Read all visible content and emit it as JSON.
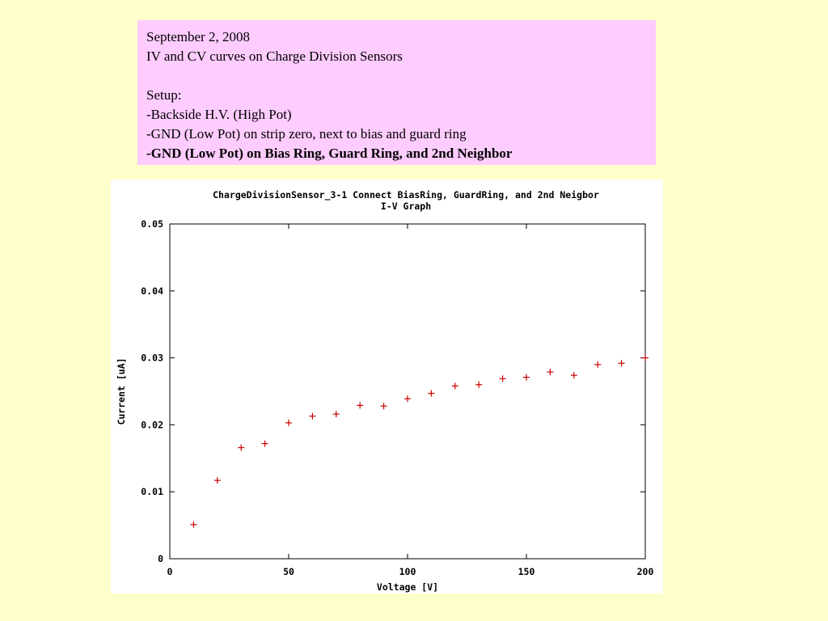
{
  "slide": {
    "date": "September 2, 2008",
    "subject": "IV and CV curves on Charge Division Sensors",
    "setup_heading": "Setup:",
    "setup_items": [
      "-Backside H.V. (High Pot)",
      "-GND (Low Pot) on strip zero, next to bias and guard ring",
      "-GND (Low Pot) on Bias Ring, Guard Ring, and 2nd Neighbor"
    ]
  },
  "chart_data": {
    "type": "scatter",
    "title": "ChargeDivisionSensor_3-1 Connect BiasRing, GuardRing, and 2nd Neigbor",
    "subtitle": "I-V Graph",
    "xlabel": "Voltage [V]",
    "ylabel": "Current [uA]",
    "xlim": [
      0,
      200
    ],
    "ylim": [
      0,
      0.05
    ],
    "x_ticks": [
      "0",
      "50",
      "100",
      "150",
      "200"
    ],
    "y_ticks": [
      "0",
      "0.01",
      "0.02",
      "0.03",
      "0.04",
      "0.05"
    ],
    "marker": "plus",
    "marker_color": "#cc0000",
    "grid": false,
    "series": [
      {
        "x": [
          10,
          20,
          30,
          40,
          50,
          60,
          70,
          80,
          90,
          100,
          110,
          120,
          130,
          140,
          150,
          160,
          170,
          180,
          190,
          200
        ],
        "y": [
          0.0051,
          0.0117,
          0.0166,
          0.0172,
          0.0203,
          0.0213,
          0.0216,
          0.0229,
          0.0228,
          0.0239,
          0.0247,
          0.0258,
          0.026,
          0.0269,
          0.0271,
          0.0279,
          0.0274,
          0.029,
          0.0292,
          0.03
        ]
      }
    ]
  }
}
